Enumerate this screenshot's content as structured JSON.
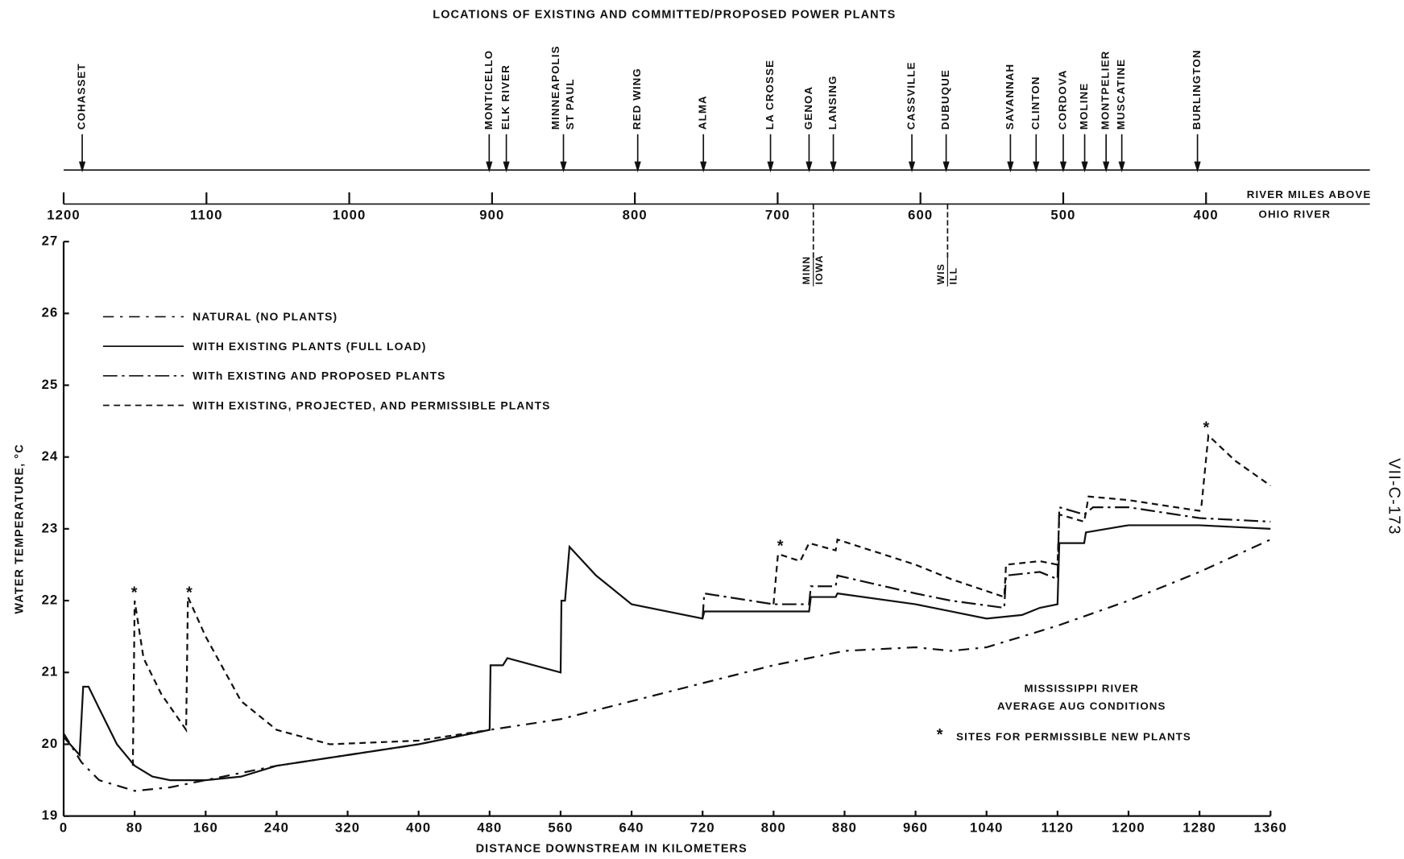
{
  "title": "LOCATIONS OF EXISTING AND COMMITTED/PROPOSED POWER PLANTS",
  "side_label": "VII-C-173",
  "river_miles": {
    "label": [
      "RIVER MILES ABOVE",
      "OHIO RIVER"
    ],
    "xlim": [
      1200,
      400
    ],
    "xticks": [
      1200,
      1100,
      1000,
      900,
      800,
      700,
      600,
      500,
      400
    ],
    "plants": [
      {
        "name": [
          "COHASSET"
        ],
        "mile": 1187
      },
      {
        "name": [
          "MONTICELLO"
        ],
        "mile": 902
      },
      {
        "name": [
          "ELK RIVER"
        ],
        "mile": 890
      },
      {
        "name": [
          "MINNEAPOLIS",
          "ST PAUL"
        ],
        "mile": 850
      },
      {
        "name": [
          "RED WING"
        ],
        "mile": 798
      },
      {
        "name": [
          "ALMA"
        ],
        "mile": 752
      },
      {
        "name": [
          "LA CROSSE"
        ],
        "mile": 705
      },
      {
        "name": [
          "GENOA"
        ],
        "mile": 678
      },
      {
        "name": [
          "LANSING"
        ],
        "mile": 661
      },
      {
        "name": [
          "CASSVILLE"
        ],
        "mile": 606
      },
      {
        "name": [
          "DUBUQUE"
        ],
        "mile": 582
      },
      {
        "name": [
          "SAVANNAH"
        ],
        "mile": 537
      },
      {
        "name": [
          "CLINTON"
        ],
        "mile": 519
      },
      {
        "name": [
          "CORDOVA"
        ],
        "mile": 500
      },
      {
        "name": [
          "MOLINE"
        ],
        "mile": 485
      },
      {
        "name": [
          "MONTPELIER"
        ],
        "mile": 470
      },
      {
        "name": [
          "MUSCATINE"
        ],
        "mile": 459
      },
      {
        "name": [
          "BURLINGTON"
        ],
        "mile": 406
      }
    ],
    "state_lines": [
      {
        "names": [
          "MINN",
          "IOWA"
        ],
        "mile": 675
      },
      {
        "names": [
          "WIS",
          "ILL"
        ],
        "mile": 581
      }
    ]
  },
  "chart_data": {
    "type": "line",
    "xlabel": "DISTANCE DOWNSTREAM IN KILOMETERS",
    "ylabel": "WATER TEMPERATURE, °C",
    "xlim": [
      0,
      1360
    ],
    "xticks": [
      0,
      80,
      160,
      240,
      320,
      400,
      480,
      560,
      640,
      720,
      800,
      880,
      960,
      1040,
      1120,
      1200,
      1280,
      1360
    ],
    "ylim": [
      19,
      27
    ],
    "yticks": [
      19,
      20,
      21,
      22,
      23,
      24,
      25,
      26,
      27
    ],
    "series": [
      {
        "name": "NATURAL (NO PLANTS)",
        "color": "#111111",
        "dash": "12 7 3 7",
        "x": [
          0,
          20,
          40,
          80,
          120,
          160,
          200,
          240,
          320,
          400,
          480,
          560,
          640,
          720,
          800,
          880,
          960,
          1000,
          1040,
          1080,
          1120,
          1200,
          1280,
          1360
        ],
        "values": [
          20.15,
          19.75,
          19.5,
          19.35,
          19.4,
          19.5,
          19.6,
          19.7,
          19.85,
          20.0,
          20.2,
          20.35,
          20.6,
          20.85,
          21.1,
          21.3,
          21.35,
          21.3,
          21.35,
          21.5,
          21.65,
          22.0,
          22.4,
          22.85
        ]
      },
      {
        "name": "WITH EXISTING PLANTS (FULL LOAD)",
        "color": "#111111",
        "dash": "none",
        "x": [
          0,
          18,
          22,
          28,
          40,
          60,
          80,
          100,
          120,
          160,
          200,
          240,
          320,
          400,
          480,
          481,
          495,
          500,
          560,
          561,
          565,
          570,
          600,
          640,
          720,
          722,
          840,
          842,
          870,
          872,
          960,
          1000,
          1040,
          1080,
          1100,
          1120,
          1122,
          1150,
          1152,
          1200,
          1280,
          1360
        ],
        "values": [
          20.1,
          19.85,
          20.8,
          20.8,
          20.5,
          20.0,
          19.7,
          19.55,
          19.5,
          19.5,
          19.55,
          19.7,
          19.85,
          20.0,
          20.2,
          21.1,
          21.1,
          21.2,
          21.0,
          22.0,
          22.0,
          22.75,
          22.35,
          21.95,
          21.75,
          21.85,
          21.85,
          22.05,
          22.05,
          22.1,
          21.95,
          21.85,
          21.75,
          21.8,
          21.9,
          21.95,
          22.8,
          22.8,
          22.95,
          23.05,
          23.05,
          23.0
        ]
      },
      {
        "name": "WITh EXISTING AND PROPOSED PLANTS",
        "color": "#111111",
        "dash": "16 5 3 5",
        "x": [
          720,
          722,
          800,
          840,
          842,
          870,
          872,
          960,
          1000,
          1060,
          1062,
          1100,
          1120,
          1122,
          1150,
          1160,
          1200,
          1280,
          1360
        ],
        "values": [
          21.75,
          22.1,
          21.95,
          21.95,
          22.2,
          22.2,
          22.35,
          22.1,
          22.0,
          21.9,
          22.35,
          22.4,
          22.3,
          23.3,
          23.2,
          23.3,
          23.3,
          23.15,
          23.1
        ]
      },
      {
        "name": "WITH EXISTING, PROJECTED, AND PERMISSIBLE PLANTS",
        "color": "#111111",
        "dash": "7 5",
        "x": [
          78,
          80,
          90,
          110,
          138,
          140,
          160,
          200,
          240,
          300,
          400,
          480,
          640,
          800,
          805,
          830,
          840,
          870,
          872,
          960,
          1000,
          1060,
          1062,
          1100,
          1120,
          1122,
          1150,
          1155,
          1200,
          1280,
          1282,
          1290,
          1320,
          1360
        ],
        "values": [
          19.7,
          22.0,
          21.2,
          20.7,
          20.2,
          22.05,
          21.5,
          20.6,
          20.2,
          20.0,
          20.05,
          20.2,
          null,
          21.95,
          22.65,
          22.55,
          22.8,
          22.7,
          22.85,
          22.5,
          22.3,
          22.05,
          22.5,
          22.55,
          22.5,
          23.2,
          23.1,
          23.45,
          23.4,
          23.25,
          23.3,
          24.3,
          23.95,
          23.6
        ]
      }
    ],
    "sites": {
      "symbol": "*",
      "x": [
        80,
        142,
        808,
        1288
      ],
      "values": [
        22.15,
        22.15,
        22.8,
        24.45
      ],
      "note": "SITES FOR PERMISSIBLE NEW PLANTS"
    },
    "annotations": [
      "MISSISSIPPI RIVER",
      "AVERAGE AUG CONDITIONS"
    ]
  }
}
